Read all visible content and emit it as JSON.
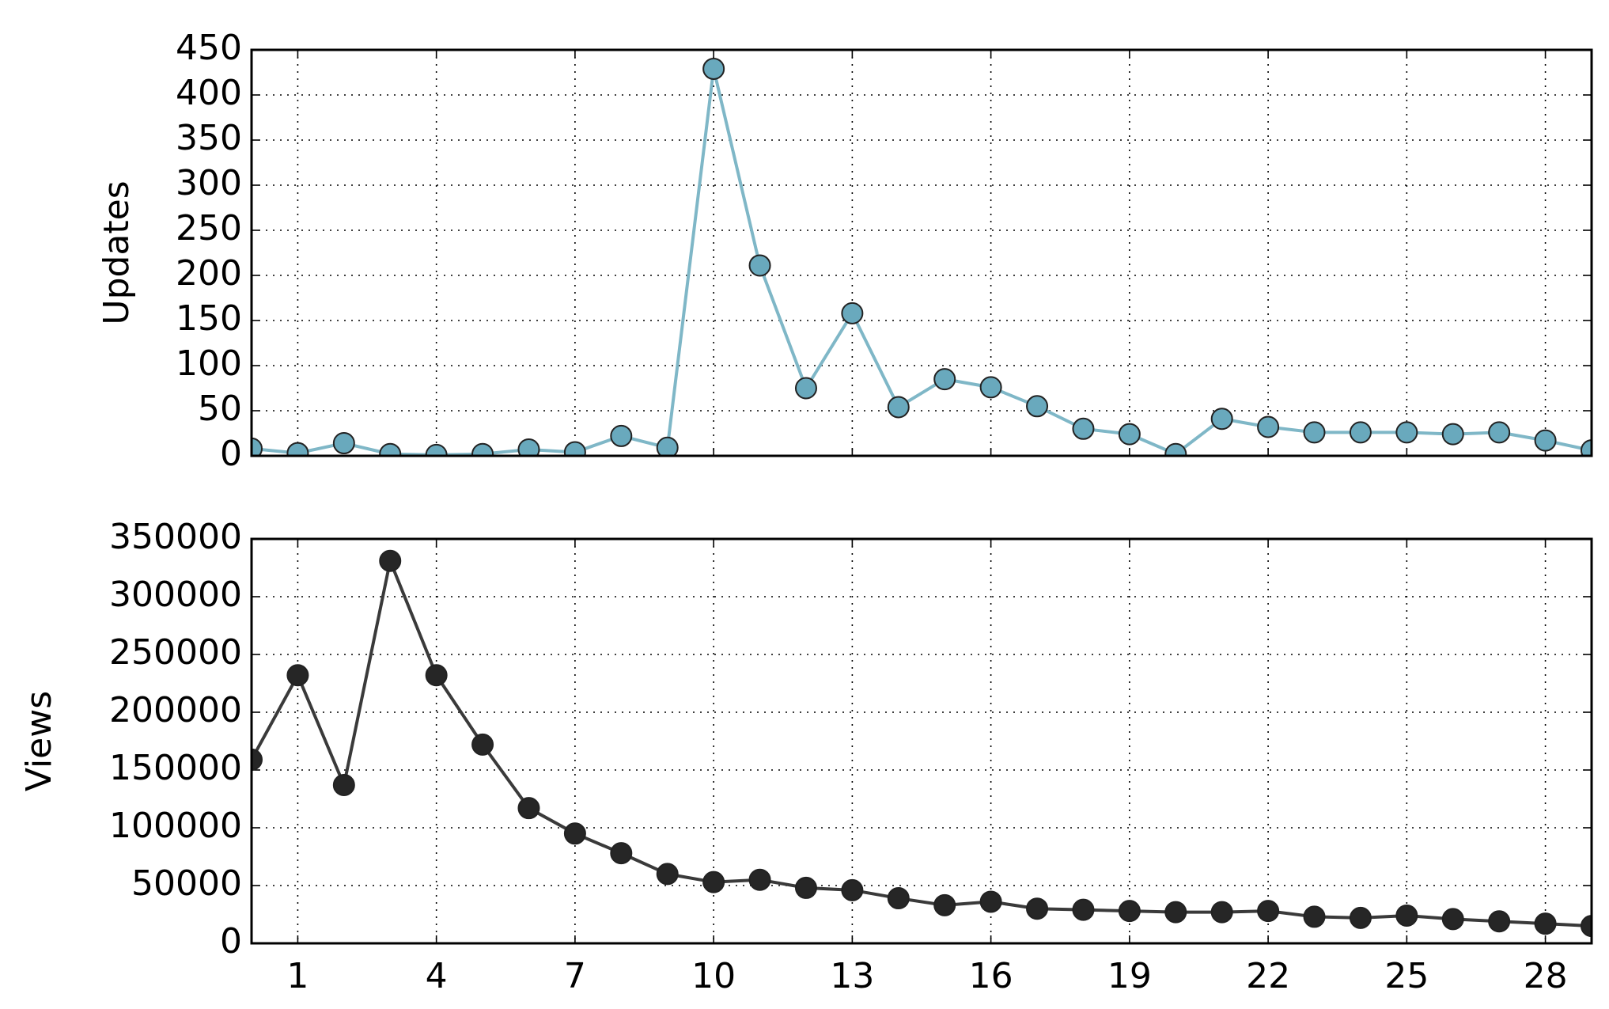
{
  "chart_data": [
    {
      "type": "line",
      "ylabel": "Updates",
      "x": [
        0,
        1,
        2,
        3,
        4,
        5,
        6,
        7,
        8,
        9,
        10,
        11,
        12,
        13,
        14,
        15,
        16,
        17,
        18,
        19,
        20,
        21,
        22,
        23,
        24,
        25,
        26,
        27,
        28,
        29
      ],
      "series": [
        {
          "name": "Updates",
          "color": "#7fb7c7",
          "marker_color": "#69a9bd",
          "values": [
            8,
            3,
            14,
            2,
            1,
            2,
            7,
            4,
            22,
            9,
            429,
            211,
            75,
            158,
            54,
            85,
            76,
            55,
            30,
            24,
            2,
            41,
            32,
            26,
            26,
            26,
            24,
            26,
            17,
            6
          ]
        }
      ],
      "xlim": [
        0,
        29
      ],
      "xticks": [
        1,
        4,
        7,
        10,
        13,
        16,
        19,
        22,
        25,
        28
      ],
      "show_xtick_labels": false,
      "ylim": [
        0,
        450
      ],
      "yticks": [
        0,
        50,
        100,
        150,
        200,
        250,
        300,
        350,
        400,
        450
      ],
      "grid": true
    },
    {
      "type": "line",
      "ylabel": "Views",
      "x": [
        0,
        1,
        2,
        3,
        4,
        5,
        6,
        7,
        8,
        9,
        10,
        11,
        12,
        13,
        14,
        15,
        16,
        17,
        18,
        19,
        20,
        21,
        22,
        23,
        24,
        25,
        26,
        27,
        28,
        29
      ],
      "series": [
        {
          "name": "Views",
          "color": "#3a3a3a",
          "marker_color": "#262626",
          "values": [
            159000,
            232000,
            137000,
            331000,
            232000,
            172000,
            117000,
            95000,
            78000,
            60000,
            53000,
            55000,
            48000,
            46000,
            39000,
            33000,
            36000,
            30000,
            29000,
            28000,
            27000,
            27000,
            28000,
            23000,
            22000,
            24000,
            21000,
            19000,
            17000,
            15000
          ]
        }
      ],
      "xlim": [
        0,
        29
      ],
      "xticks": [
        1,
        4,
        7,
        10,
        13,
        16,
        19,
        22,
        25,
        28
      ],
      "show_xtick_labels": true,
      "ylim": [
        0,
        350000
      ],
      "yticks": [
        0,
        50000,
        100000,
        150000,
        200000,
        250000,
        300000,
        350000
      ],
      "grid": true
    }
  ]
}
